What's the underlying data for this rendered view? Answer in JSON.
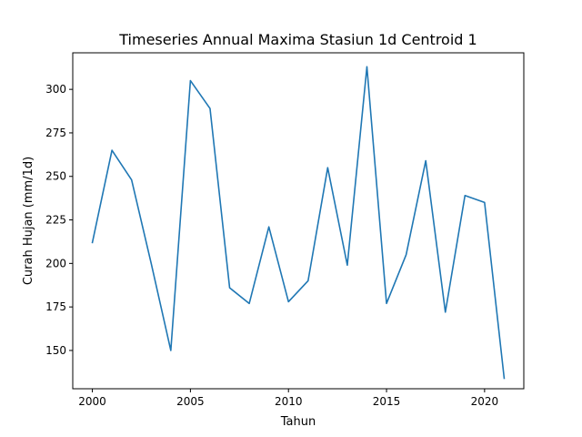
{
  "chart_data": {
    "type": "line",
    "title": "Timeseries Annual Maxima Stasiun 1d Centroid 1",
    "xlabel": "Tahun",
    "ylabel": "Curah Hujan (mm/1d)",
    "xlim": [
      1999,
      2022
    ],
    "ylim": [
      128,
      321
    ],
    "xticks": [
      2000,
      2005,
      2010,
      2015,
      2020
    ],
    "yticks": [
      150,
      175,
      200,
      225,
      250,
      275,
      300
    ],
    "grid": false,
    "series": [
      {
        "color": "#1f77b4",
        "x": [
          2000,
          2001,
          2002,
          2003,
          2004,
          2005,
          2006,
          2007,
          2008,
          2009,
          2010,
          2011,
          2012,
          2013,
          2014,
          2015,
          2016,
          2017,
          2018,
          2019,
          2020,
          2021
        ],
        "y": [
          212,
          265,
          248,
          200,
          150,
          305,
          289,
          186,
          177,
          221,
          178,
          190,
          255,
          199,
          313,
          177,
          205,
          259,
          172,
          239,
          235,
          134
        ]
      }
    ]
  }
}
